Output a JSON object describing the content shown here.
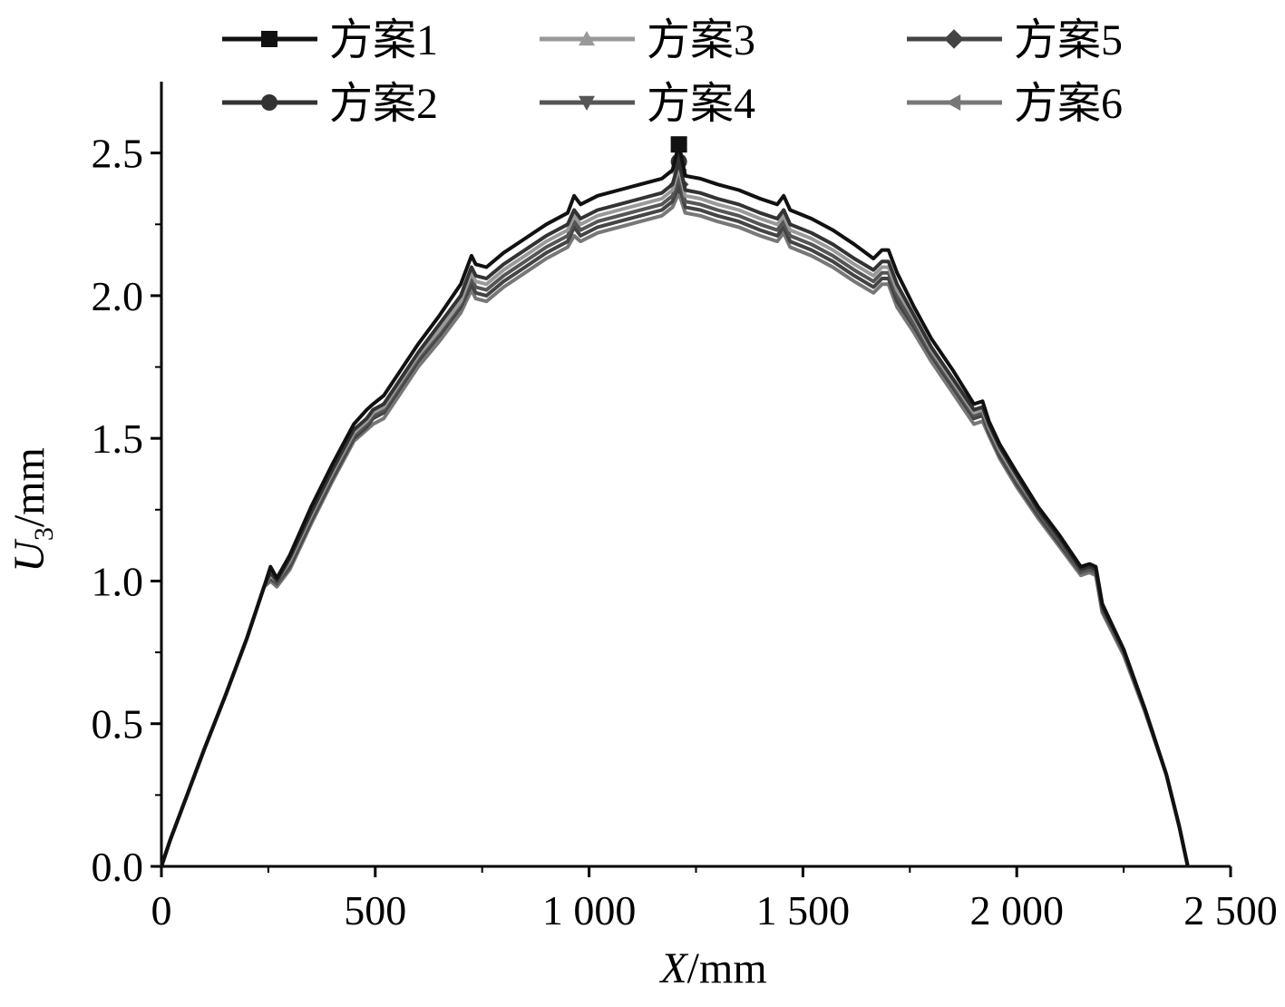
{
  "chart_data": {
    "type": "line",
    "title": "",
    "xlabel_var": "X",
    "xlabel_unit": "/mm",
    "ylabel_var": "U",
    "ylabel_sub": "3",
    "ylabel_unit": "/mm",
    "xlim": [
      0,
      2500
    ],
    "ylim": [
      0,
      2.75
    ],
    "x_ticks": [
      0,
      500,
      1000,
      1500,
      2000,
      2500
    ],
    "x_tick_labels": [
      "0",
      "500",
      "1 000",
      "1 500",
      "2 000",
      "2 500"
    ],
    "y_ticks": [
      0.0,
      0.5,
      1.0,
      1.5,
      2.0,
      2.5
    ],
    "y_tick_labels": [
      "0.0",
      "0.5",
      "1.0",
      "1.5",
      "2.0",
      "2.5"
    ],
    "grid": false,
    "legend_position": "top",
    "x": [
      0,
      20,
      60,
      100,
      150,
      200,
      240,
      255,
      270,
      300,
      350,
      400,
      450,
      480,
      495,
      520,
      560,
      600,
      650,
      700,
      725,
      735,
      760,
      800,
      850,
      900,
      950,
      965,
      980,
      1020,
      1070,
      1120,
      1170,
      1195,
      1210,
      1225,
      1260,
      1300,
      1350,
      1400,
      1440,
      1455,
      1470,
      1520,
      1570,
      1620,
      1665,
      1685,
      1700,
      1720,
      1760,
      1800,
      1850,
      1900,
      1920,
      1935,
      1960,
      2000,
      2050,
      2100,
      2150,
      2170,
      2185,
      2200,
      2250,
      2300,
      2350,
      2380,
      2400
    ],
    "series": [
      {
        "name": "方案1",
        "color": "#111111",
        "marker": "square",
        "values": [
          0,
          0.09,
          0.25,
          0.41,
          0.6,
          0.8,
          0.98,
          1.05,
          1.01,
          1.09,
          1.26,
          1.41,
          1.55,
          1.6,
          1.62,
          1.65,
          1.74,
          1.83,
          1.93,
          2.04,
          2.14,
          2.11,
          2.1,
          2.15,
          2.2,
          2.25,
          2.29,
          2.35,
          2.32,
          2.35,
          2.37,
          2.39,
          2.41,
          2.44,
          2.53,
          2.42,
          2.41,
          2.39,
          2.37,
          2.34,
          2.32,
          2.35,
          2.3,
          2.27,
          2.23,
          2.18,
          2.13,
          2.16,
          2.16,
          2.08,
          1.96,
          1.85,
          1.74,
          1.62,
          1.63,
          1.56,
          1.48,
          1.38,
          1.26,
          1.16,
          1.05,
          1.06,
          1.05,
          0.92,
          0.76,
          0.55,
          0.32,
          0.14,
          0.0
        ]
      },
      {
        "name": "方案2",
        "color": "#333333",
        "marker": "circle",
        "values": [
          0,
          0.09,
          0.25,
          0.41,
          0.6,
          0.8,
          0.98,
          1.03,
          1.0,
          1.08,
          1.24,
          1.39,
          1.53,
          1.57,
          1.6,
          1.62,
          1.71,
          1.8,
          1.9,
          2.0,
          2.1,
          2.07,
          2.06,
          2.11,
          2.16,
          2.21,
          2.25,
          2.3,
          2.27,
          2.3,
          2.32,
          2.34,
          2.36,
          2.39,
          2.47,
          2.37,
          2.36,
          2.34,
          2.32,
          2.29,
          2.27,
          2.3,
          2.25,
          2.22,
          2.18,
          2.13,
          2.09,
          2.12,
          2.12,
          2.04,
          1.93,
          1.82,
          1.71,
          1.6,
          1.61,
          1.55,
          1.47,
          1.37,
          1.25,
          1.15,
          1.04,
          1.05,
          1.04,
          0.91,
          0.76,
          0.55,
          0.32,
          0.14,
          0.0
        ]
      },
      {
        "name": "方案3",
        "color": "#999999",
        "marker": "triangle-up",
        "values": [
          0,
          0.09,
          0.25,
          0.41,
          0.6,
          0.8,
          0.98,
          1.02,
          1.0,
          1.07,
          1.23,
          1.38,
          1.52,
          1.56,
          1.59,
          1.61,
          1.7,
          1.79,
          1.88,
          1.98,
          2.08,
          2.05,
          2.04,
          2.09,
          2.14,
          2.19,
          2.23,
          2.28,
          2.25,
          2.28,
          2.3,
          2.32,
          2.34,
          2.37,
          2.45,
          2.35,
          2.34,
          2.32,
          2.3,
          2.27,
          2.25,
          2.28,
          2.23,
          2.2,
          2.16,
          2.11,
          2.07,
          2.1,
          2.1,
          2.02,
          1.92,
          1.81,
          1.7,
          1.59,
          1.6,
          1.54,
          1.46,
          1.36,
          1.25,
          1.15,
          1.04,
          1.05,
          1.04,
          0.91,
          0.76,
          0.55,
          0.32,
          0.14,
          0.0
        ]
      },
      {
        "name": "方案4",
        "color": "#555555",
        "marker": "triangle-down",
        "values": [
          0,
          0.09,
          0.25,
          0.41,
          0.6,
          0.8,
          0.98,
          1.02,
          0.99,
          1.06,
          1.22,
          1.37,
          1.51,
          1.55,
          1.58,
          1.6,
          1.69,
          1.78,
          1.87,
          1.97,
          2.06,
          2.03,
          2.02,
          2.07,
          2.12,
          2.17,
          2.21,
          2.26,
          2.23,
          2.26,
          2.28,
          2.3,
          2.32,
          2.35,
          2.42,
          2.33,
          2.32,
          2.3,
          2.28,
          2.25,
          2.23,
          2.26,
          2.21,
          2.18,
          2.14,
          2.09,
          2.05,
          2.08,
          2.08,
          2.0,
          1.9,
          1.8,
          1.69,
          1.58,
          1.59,
          1.53,
          1.45,
          1.35,
          1.24,
          1.14,
          1.03,
          1.04,
          1.03,
          0.9,
          0.75,
          0.55,
          0.32,
          0.14,
          0.0
        ]
      },
      {
        "name": "方案5",
        "color": "#444444",
        "marker": "diamond",
        "values": [
          0,
          0.09,
          0.25,
          0.41,
          0.6,
          0.8,
          0.98,
          1.01,
          0.99,
          1.05,
          1.21,
          1.36,
          1.5,
          1.54,
          1.57,
          1.59,
          1.68,
          1.77,
          1.86,
          1.96,
          2.04,
          2.01,
          2.0,
          2.05,
          2.1,
          2.15,
          2.19,
          2.24,
          2.21,
          2.24,
          2.26,
          2.28,
          2.3,
          2.33,
          2.39,
          2.31,
          2.3,
          2.28,
          2.26,
          2.23,
          2.21,
          2.24,
          2.19,
          2.16,
          2.12,
          2.07,
          2.03,
          2.06,
          2.06,
          1.98,
          1.89,
          1.79,
          1.68,
          1.57,
          1.58,
          1.52,
          1.44,
          1.34,
          1.23,
          1.13,
          1.03,
          1.04,
          1.03,
          0.9,
          0.75,
          0.55,
          0.32,
          0.14,
          0.0
        ]
      },
      {
        "name": "方案6",
        "color": "#777777",
        "marker": "triangle-left",
        "values": [
          0,
          0.09,
          0.25,
          0.41,
          0.6,
          0.8,
          0.98,
          1.0,
          0.98,
          1.04,
          1.2,
          1.35,
          1.49,
          1.53,
          1.55,
          1.57,
          1.66,
          1.75,
          1.84,
          1.94,
          2.02,
          1.99,
          1.98,
          2.03,
          2.08,
          2.13,
          2.17,
          2.21,
          2.19,
          2.22,
          2.24,
          2.26,
          2.28,
          2.31,
          2.36,
          2.29,
          2.28,
          2.26,
          2.24,
          2.21,
          2.19,
          2.22,
          2.17,
          2.14,
          2.1,
          2.05,
          2.01,
          2.04,
          2.04,
          1.96,
          1.87,
          1.77,
          1.66,
          1.55,
          1.56,
          1.51,
          1.43,
          1.33,
          1.22,
          1.12,
          1.02,
          1.03,
          1.02,
          0.89,
          0.74,
          0.54,
          0.32,
          0.14,
          0.0
        ]
      }
    ]
  }
}
